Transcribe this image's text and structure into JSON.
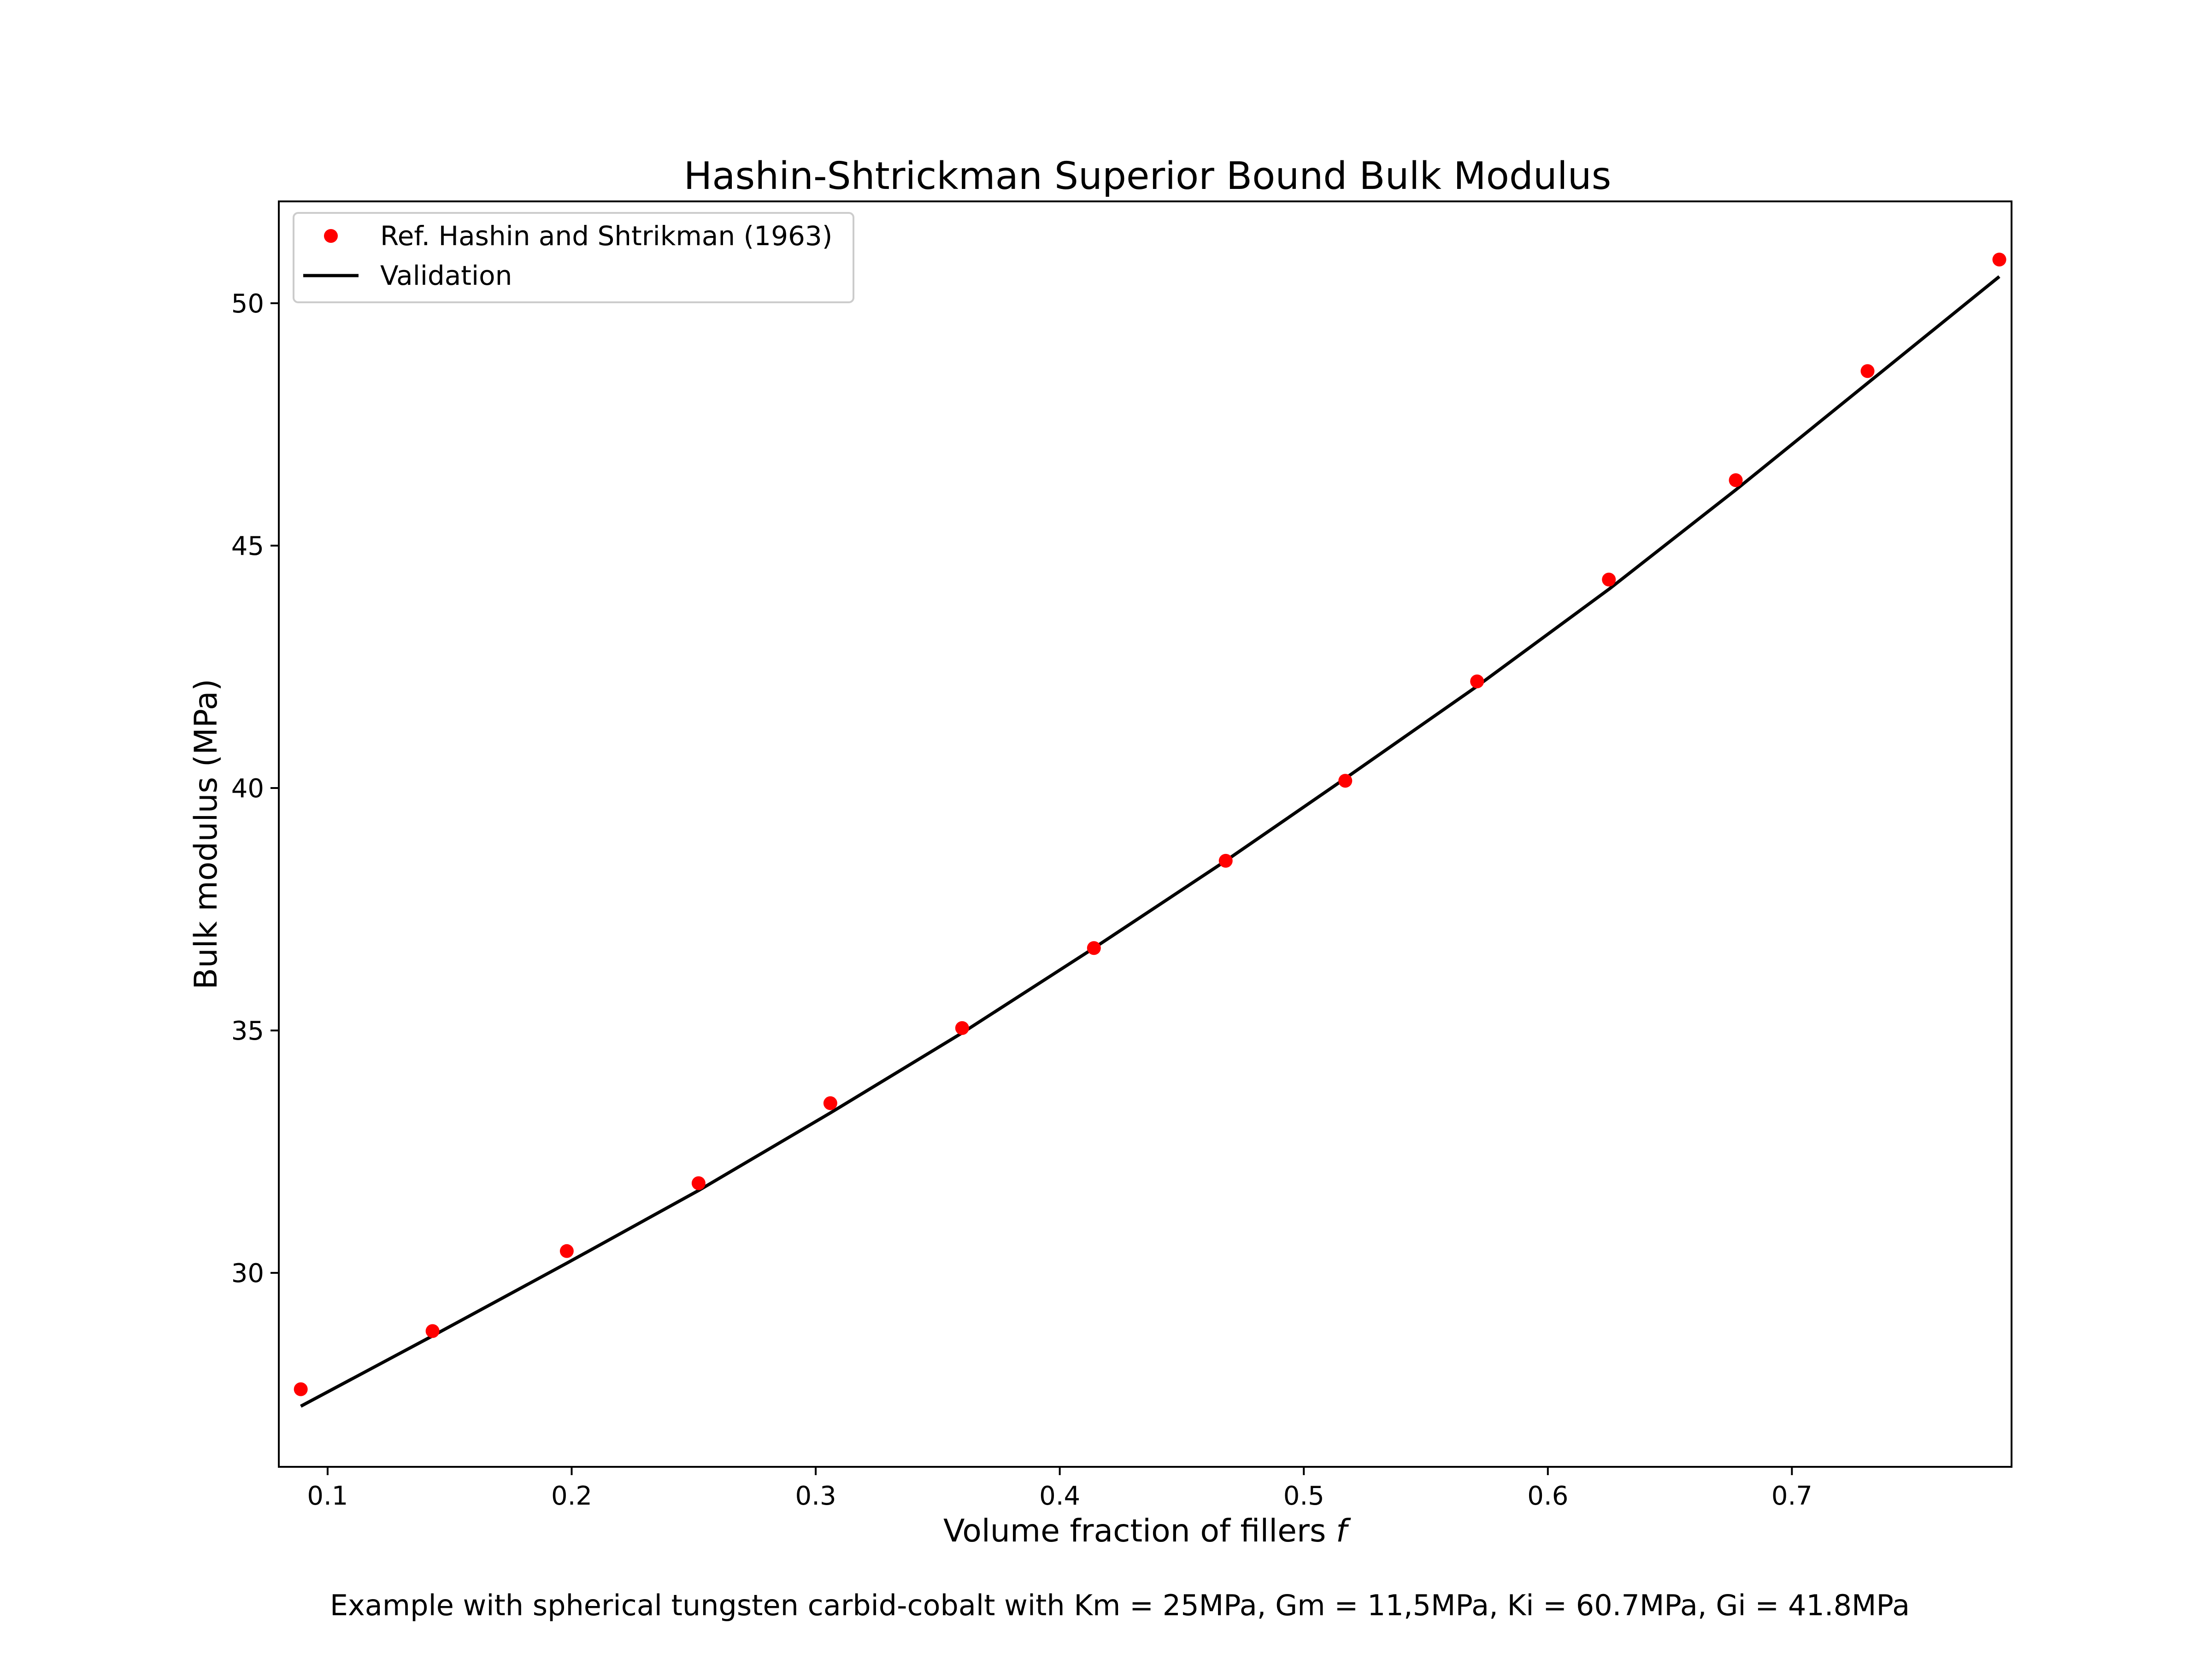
{
  "caption": "Example with spherical tungsten carbid-cobalt with Km = 25MPa, Gm = 11,5MPa, Ki = 60.7MPa, Gi = 41.8MPa",
  "chart_data": {
    "type": "scatter",
    "title": "Hashin-Shtrickman Superior Bound Bulk Modulus",
    "xlabel": "Volume fraction of fillers",
    "xlabel_symbol": "f",
    "ylabel": "Bulk modulus (MPa)",
    "xlim": [
      0.08,
      0.79
    ],
    "ylim": [
      26.0,
      52.1
    ],
    "xticks": [
      0.1,
      0.2,
      0.3,
      0.4,
      0.5,
      0.6,
      0.7
    ],
    "xtick_labels": [
      "0.1",
      "0.2",
      "0.3",
      "0.4",
      "0.5",
      "0.6",
      "0.7"
    ],
    "yticks": [
      30,
      35,
      40,
      45,
      50
    ],
    "ytick_labels": [
      "30",
      "35",
      "40",
      "45",
      "50"
    ],
    "grid": false,
    "legend_position": "top-left",
    "series": [
      {
        "name": "Ref. Hashin and Shtrikman (1963)",
        "kind": "points",
        "color": "#ff0000",
        "x": [
          0.089,
          0.143,
          0.198,
          0.252,
          0.306,
          0.36,
          0.414,
          0.468,
          0.517,
          0.571,
          0.625,
          0.677,
          0.731,
          0.785
        ],
        "y": [
          27.6,
          28.8,
          30.45,
          31.85,
          33.5,
          35.05,
          36.7,
          38.5,
          40.15,
          42.2,
          44.3,
          46.35,
          48.6,
          50.9
        ]
      },
      {
        "name": "Validation",
        "kind": "line",
        "color": "#000000",
        "x": [
          0.089,
          0.143,
          0.198,
          0.252,
          0.306,
          0.36,
          0.414,
          0.468,
          0.517,
          0.571,
          0.625,
          0.677,
          0.731,
          0.785
        ],
        "y": [
          27.25,
          28.7,
          30.2,
          31.7,
          33.3,
          34.95,
          36.7,
          38.5,
          40.2,
          42.1,
          44.1,
          46.15,
          48.35,
          50.55
        ]
      }
    ]
  }
}
